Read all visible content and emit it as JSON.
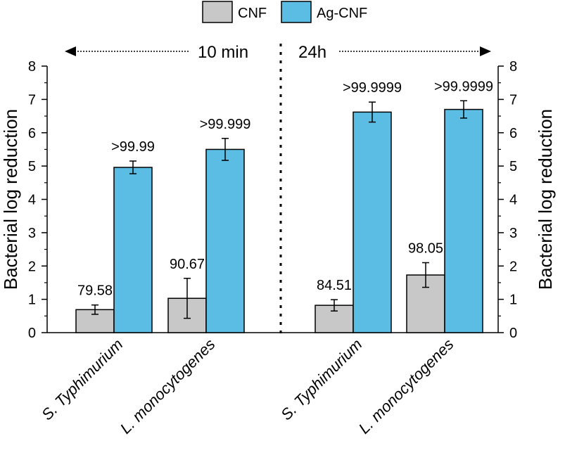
{
  "legend": {
    "entries": [
      {
        "name": "CNF",
        "color": "#c8c8c8"
      },
      {
        "name": "Ag-CNF",
        "color": "#5bbde3"
      }
    ]
  },
  "time_labels": {
    "left": "10 min",
    "right": "24h"
  },
  "chart_data": [
    {
      "type": "bar",
      "panel": "10 min",
      "categories": [
        "S. Typhimurium",
        "L. monocytogenes"
      ],
      "series": [
        {
          "name": "CNF",
          "color": "#c8c8c8",
          "values": [
            0.69,
            1.03
          ],
          "errors": [
            0.14,
            0.6
          ],
          "labels": [
            "79.58",
            "90.67"
          ]
        },
        {
          "name": "Ag-CNF",
          "color": "#5bbde3",
          "values": [
            4.96,
            5.5
          ],
          "errors": [
            0.19,
            0.33
          ],
          "labels": [
            ">99.99",
            ">99.999"
          ]
        }
      ],
      "ylabel": "Bacterial log reduction",
      "ylim": [
        0,
        8
      ],
      "yticks": [
        0,
        1,
        2,
        3,
        4,
        5,
        6,
        7,
        8
      ],
      "yaxis_side": "left"
    },
    {
      "type": "bar",
      "panel": "24h",
      "categories": [
        "S. Typhimurium",
        "L. monocytogenes"
      ],
      "series": [
        {
          "name": "CNF",
          "color": "#c8c8c8",
          "values": [
            0.82,
            1.73
          ],
          "errors": [
            0.17,
            0.37
          ],
          "labels": [
            "84.51",
            "98.05"
          ]
        },
        {
          "name": "Ag-CNF",
          "color": "#5bbde3",
          "values": [
            6.62,
            6.7
          ],
          "errors": [
            0.3,
            0.26
          ],
          "labels": [
            ">99.9999",
            ">99.9999"
          ]
        }
      ],
      "ylabel": "Bacterial log reduction",
      "ylim": [
        0,
        8
      ],
      "yticks": [
        0,
        1,
        2,
        3,
        4,
        5,
        6,
        7,
        8
      ],
      "yaxis_side": "right"
    }
  ]
}
